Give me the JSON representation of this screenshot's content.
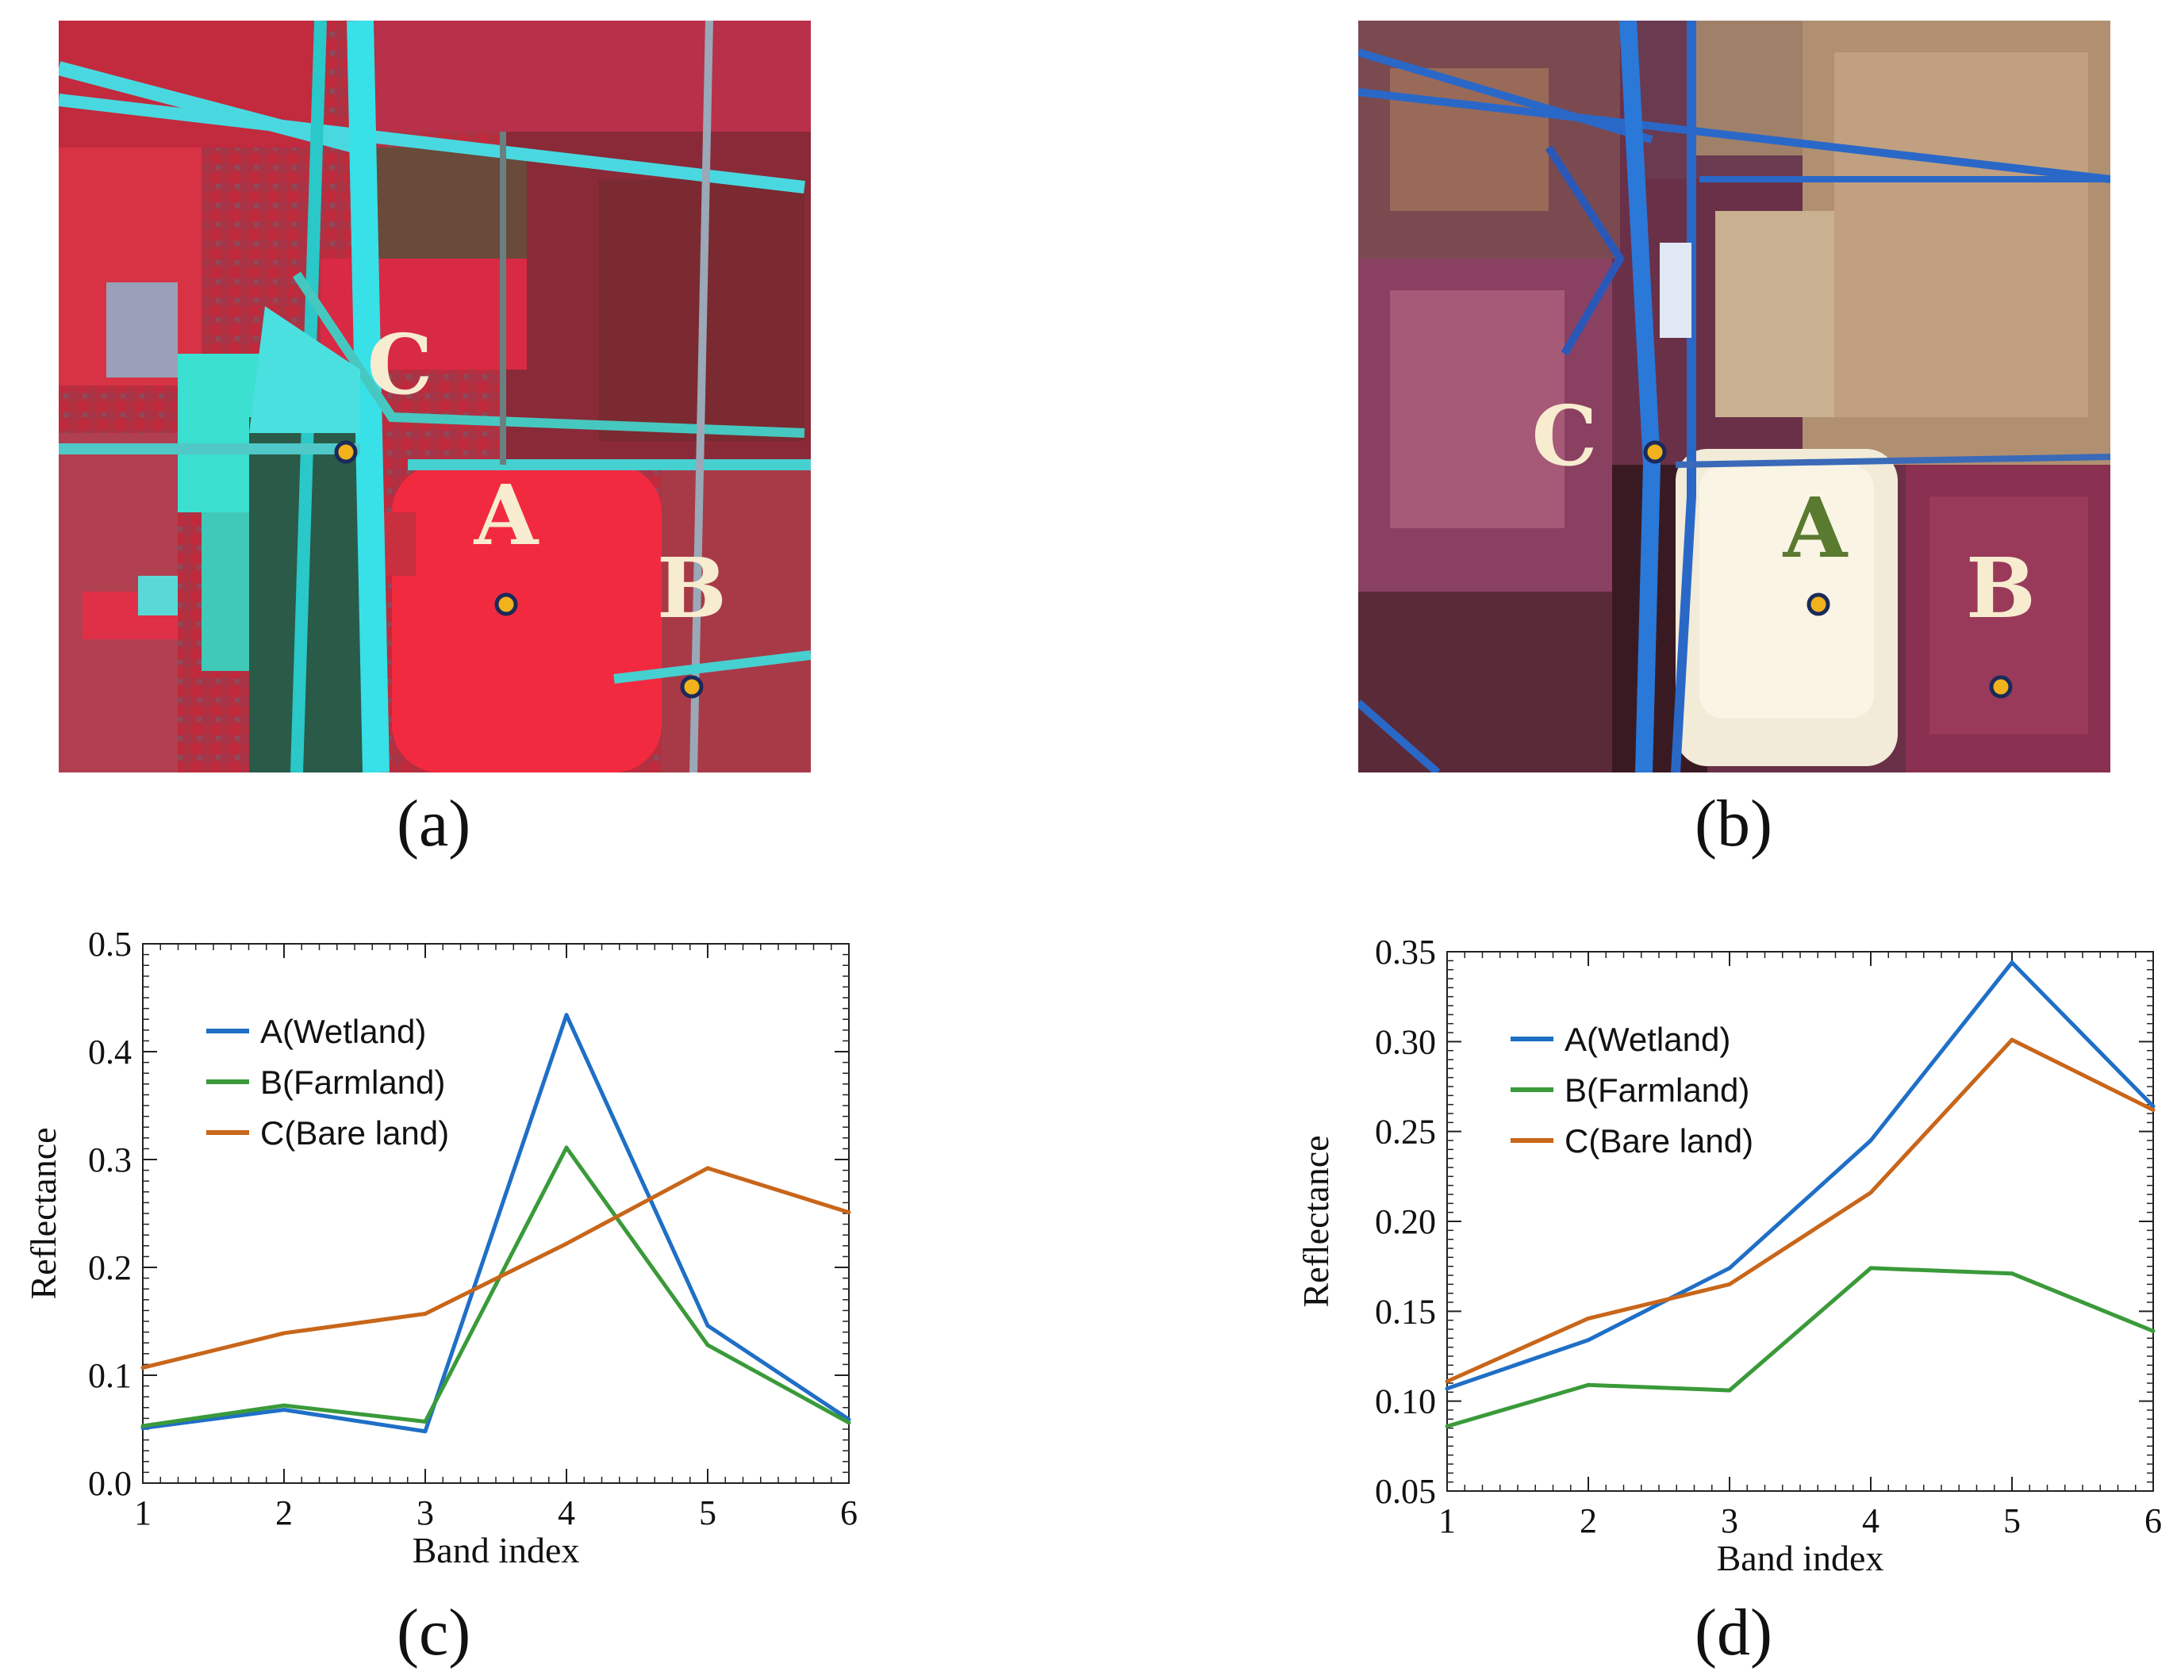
{
  "panels": {
    "a": {
      "label": "(a)",
      "points": [
        {
          "id": "C",
          "label": "C"
        },
        {
          "id": "A",
          "label": "A"
        },
        {
          "id": "B",
          "label": "B"
        }
      ]
    },
    "b": {
      "label": "(b)",
      "points": [
        {
          "id": "C",
          "label": "C"
        },
        {
          "id": "A",
          "label": "A"
        },
        {
          "id": "B",
          "label": "B"
        }
      ]
    },
    "c": {
      "label": "(c)"
    },
    "d": {
      "label": "(d)"
    }
  },
  "colors": {
    "wetland": "#1f6fc6",
    "farmland": "#3a9a3a",
    "bareland": "#c8661a",
    "marker_fill": "#f2b21c",
    "marker_stroke": "#1a2a5a",
    "label_light": "#f7ecd0",
    "label_green": "#5a7a30"
  },
  "chart_data": [
    {
      "type": "line",
      "panel": "(c)",
      "x": [
        1,
        2,
        3,
        4,
        5,
        6
      ],
      "xlabel": "Band index",
      "ylabel": "Reflectance",
      "xlim": [
        1,
        6
      ],
      "ylim": [
        0.0,
        0.5
      ],
      "yticks": [
        "0.0",
        "0.1",
        "0.2",
        "0.3",
        "0.4",
        "0.5"
      ],
      "xticks": [
        "1",
        "2",
        "3",
        "4",
        "5",
        "6"
      ],
      "legend_position": "top-left",
      "series": [
        {
          "name": "A(Wetland)",
          "color_key": "wetland",
          "values": [
            0.051,
            0.068,
            0.048,
            0.434,
            0.146,
            0.059
          ]
        },
        {
          "name": "B(Farmland)",
          "color_key": "farmland",
          "values": [
            0.053,
            0.072,
            0.057,
            0.311,
            0.128,
            0.056
          ]
        },
        {
          "name": "C(Bare land)",
          "color_key": "bareland",
          "values": [
            0.107,
            0.139,
            0.157,
            0.222,
            0.292,
            0.251
          ]
        }
      ]
    },
    {
      "type": "line",
      "panel": "(d)",
      "x": [
        1,
        2,
        3,
        4,
        5,
        6
      ],
      "xlabel": "Band index",
      "ylabel": "Reflectance",
      "xlim": [
        1,
        6
      ],
      "ylim": [
        0.05,
        0.35
      ],
      "yticks": [
        "0.05",
        "0.10",
        "0.15",
        "0.20",
        "0.25",
        "0.30",
        "0.35"
      ],
      "xticks": [
        "1",
        "2",
        "3",
        "4",
        "5",
        "6"
      ],
      "legend_position": "top-left",
      "series": [
        {
          "name": "A(Wetland)",
          "color_key": "wetland",
          "values": [
            0.107,
            0.134,
            0.174,
            0.245,
            0.344,
            0.264
          ]
        },
        {
          "name": "B(Farmland)",
          "color_key": "farmland",
          "values": [
            0.086,
            0.109,
            0.106,
            0.174,
            0.171,
            0.139
          ]
        },
        {
          "name": "C(Bare land)",
          "color_key": "bareland",
          "values": [
            0.111,
            0.146,
            0.165,
            0.216,
            0.301,
            0.262
          ]
        }
      ]
    }
  ]
}
